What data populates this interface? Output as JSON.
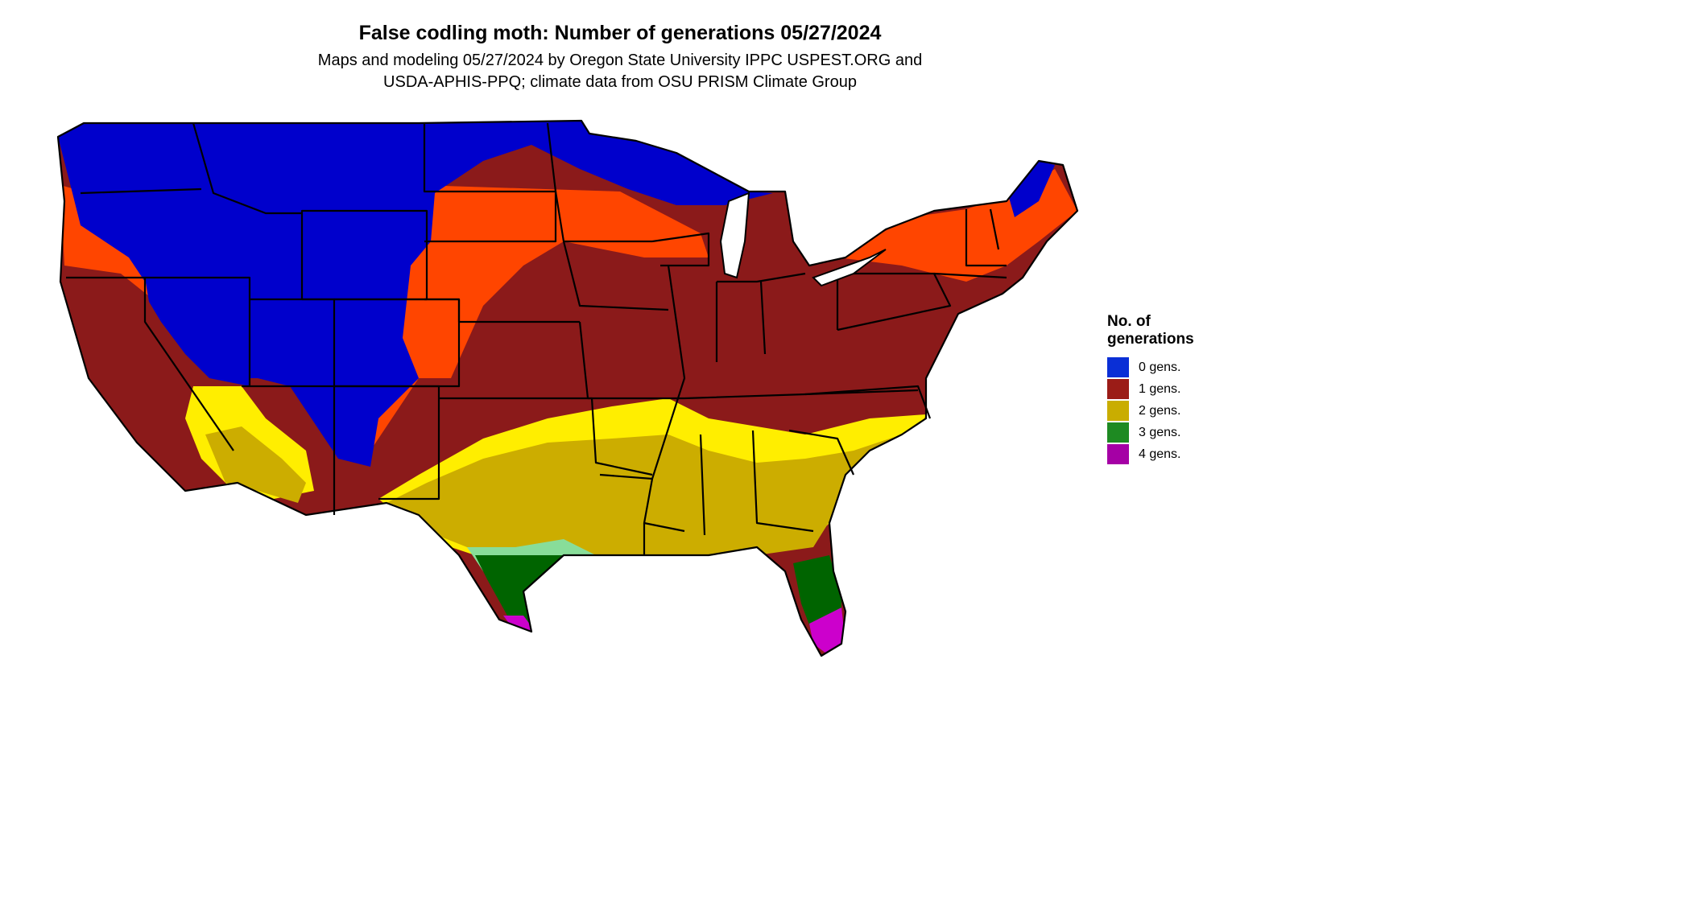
{
  "title": "False codling moth: Number of generations 05/27/2024",
  "subtitle_line1": "Maps and modeling 05/27/2024 by Oregon State University IPPC USPEST.ORG and",
  "subtitle_line2": "USDA-APHIS-PPQ; climate data from OSU PRISM Climate Group",
  "legend": {
    "title_line1": "No. of",
    "title_line2": "generations",
    "items": [
      {
        "label": "0 gens.",
        "color": "#0a2fd6"
      },
      {
        "label": "1 gens.",
        "color": "#9b1c17"
      },
      {
        "label": "2 gens.",
        "color": "#c9ad00"
      },
      {
        "label": "3 gens.",
        "color": "#1e8a22"
      },
      {
        "label": "4 gens.",
        "color": "#a500a5"
      }
    ]
  },
  "map_colors": {
    "zero_gens": "#0000cc",
    "one_gen_transition": "#ff4500",
    "one_gen": "#8b1a1a",
    "two_gens_transition": "#ffee00",
    "two_gens": "#ccad00",
    "three_gens_transition": "#88dd99",
    "three_gens": "#006400",
    "four_gens": "#cc00cc",
    "state_border": "#000000"
  }
}
